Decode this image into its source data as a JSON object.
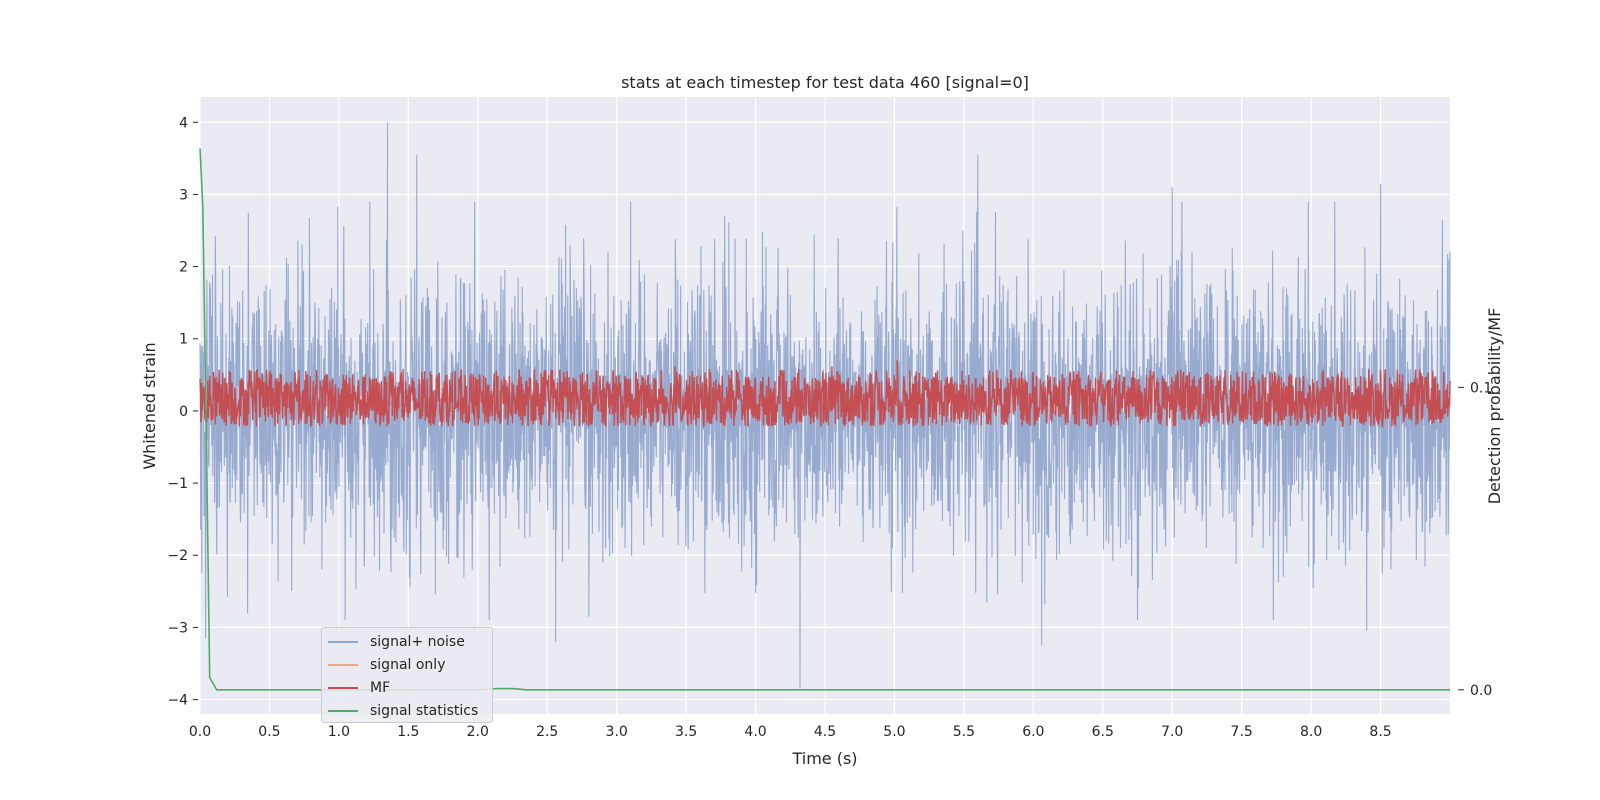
{
  "chart_data": {
    "type": "line",
    "title": "stats at each timestep for test data 460 [signal=0]",
    "xlabel": "Time (s)",
    "ylabel": "Whitened strain",
    "y2label": "Detection probability/MF",
    "xlim": [
      0.0,
      9.0
    ],
    "ylim": [
      -4.2,
      4.35
    ],
    "y2lim": [
      -0.008,
      0.196
    ],
    "x_ticks": [
      "0.0",
      "0.5",
      "1.0",
      "1.5",
      "2.0",
      "2.5",
      "3.0",
      "3.5",
      "4.0",
      "4.5",
      "5.0",
      "5.5",
      "6.0",
      "6.5",
      "7.0",
      "7.5",
      "8.0",
      "8.5"
    ],
    "y_ticks": [
      "4",
      "3",
      "2",
      "1",
      "0",
      "−1",
      "−2",
      "−3",
      "−4"
    ],
    "y2_ticks": [
      "0.1",
      "0.0"
    ],
    "grid": true,
    "legend_position": "lower-left",
    "series": [
      {
        "name": "signal+ noise",
        "color": "#92a6cc",
        "axis": "left",
        "description_values": "noise centered at 0, typical range -2.5 to 2.5",
        "peaks": [
          {
            "x": 1.35,
            "y": 4.0
          },
          {
            "x": 1.56,
            "y": 3.55
          },
          {
            "x": 5.6,
            "y": 3.55
          },
          {
            "x": 8.5,
            "y": 3.15
          },
          {
            "x": 7.0,
            "y": 3.1
          },
          {
            "x": 4.32,
            "y": -3.85
          },
          {
            "x": 2.56,
            "y": -3.2
          },
          {
            "x": 6.06,
            "y": -3.25
          },
          {
            "x": 8.4,
            "y": -3.05
          },
          {
            "x": 0.04,
            "y": -3.15
          }
        ]
      },
      {
        "name": "signal only",
        "color": "#dd8452",
        "axis": "left",
        "values_note": "zero signal",
        "x": [
          0.0,
          9.0
        ],
        "y": [
          0.0,
          0.0
        ]
      },
      {
        "name": "MF",
        "color": "#c44e52",
        "axis": "right",
        "band": [
          0.087,
          0.104
        ],
        "peaks": [
          {
            "x": 5.02,
            "y": 0.109
          },
          {
            "x": 3.42,
            "y": 0.107
          },
          {
            "x": 4.55,
            "y": 0.107
          }
        ]
      },
      {
        "name": "signal statistics",
        "color": "#55a868",
        "axis": "right",
        "x": [
          0.0,
          0.02,
          0.05,
          0.07,
          0.12,
          0.5,
          1.0,
          2.0,
          2.15,
          2.25,
          2.35,
          3.0,
          9.0
        ],
        "y": [
          0.179,
          0.16,
          0.07,
          0.004,
          0.0,
          0.0,
          0.0,
          0.0,
          0.0004,
          0.0004,
          0.0,
          0.0,
          0.0
        ]
      }
    ]
  },
  "legend": {
    "items": [
      {
        "label": "signal+ noise",
        "color": "#92a6cc"
      },
      {
        "label": "signal only",
        "color": "#dd8452"
      },
      {
        "label": "MF",
        "color": "#c44e52"
      },
      {
        "label": "signal statistics",
        "color": "#55a868"
      }
    ]
  }
}
